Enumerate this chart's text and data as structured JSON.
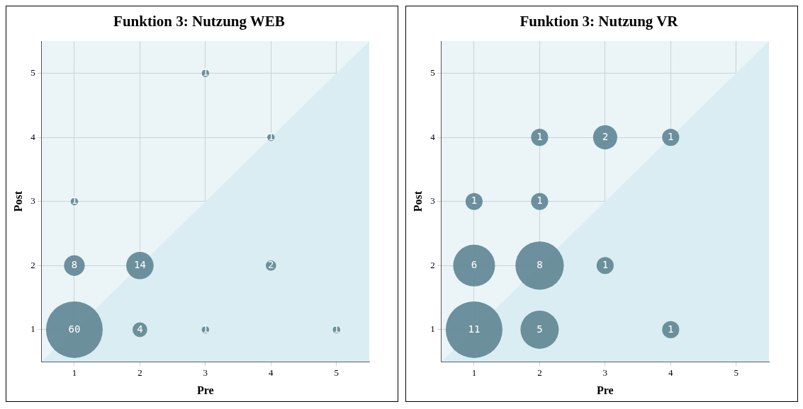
{
  "chart_data": [
    {
      "type": "bubble",
      "title": "Funktion 3: Nutzung WEB",
      "xlabel": "Pre",
      "ylabel": "Post",
      "xlim": [
        0.5,
        5.5
      ],
      "ylim": [
        0.5,
        5.5
      ],
      "xticks": [
        1,
        2,
        3,
        4,
        5
      ],
      "yticks": [
        1,
        2,
        3,
        4,
        5
      ],
      "grid": true,
      "series": [
        {
          "type": "area",
          "color": "#daedf3",
          "x": [
            0.5,
            5.5
          ],
          "values": [
            0.5,
            5.5
          ]
        },
        {
          "color": "#5e8592",
          "x": [
            1,
            2,
            3,
            5,
            1,
            2,
            4,
            1,
            4,
            3
          ],
          "values": [
            1,
            1,
            1,
            1,
            2,
            2,
            2,
            3,
            4,
            5
          ],
          "sizes": [
            1,
            0.067,
            0.017,
            0.017,
            0.133,
            0.233,
            0.033,
            0.017,
            0.017,
            0.017
          ]
        }
      ],
      "annotations": [
        {
          "text": "60",
          "x": 1,
          "y": 1
        },
        {
          "text": "4",
          "x": 2,
          "y": 1
        },
        {
          "text": "1",
          "x": 3,
          "y": 1
        },
        {
          "text": "1",
          "x": 5,
          "y": 1
        },
        {
          "text": "8",
          "x": 1,
          "y": 2
        },
        {
          "text": "14",
          "x": 2,
          "y": 2
        },
        {
          "text": "2",
          "x": 4,
          "y": 2
        },
        {
          "text": "1",
          "x": 1,
          "y": 3
        },
        {
          "text": "1",
          "x": 4,
          "y": 4
        },
        {
          "text": "1",
          "x": 3,
          "y": 5
        }
      ]
    },
    {
      "type": "bubble",
      "title": "Funktion 3: Nutzung VR",
      "xlabel": "Pre",
      "ylabel": "Post",
      "xlim": [
        0.5,
        5.5
      ],
      "ylim": [
        0.5,
        5.5
      ],
      "xticks": [
        1,
        2,
        3,
        4,
        5
      ],
      "yticks": [
        1,
        2,
        3,
        4,
        5
      ],
      "grid": true,
      "series": [
        {
          "type": "area",
          "color": "#daedf3",
          "x": [
            0.5,
            5.5
          ],
          "values": [
            0.5,
            5.5
          ]
        },
        {
          "color": "#5e8592",
          "x": [
            1,
            2,
            4,
            1,
            2,
            3,
            1,
            2,
            2,
            3,
            4
          ],
          "values": [
            1,
            1,
            1,
            2,
            2,
            2,
            3,
            3,
            4,
            4,
            4
          ],
          "sizes": [
            1,
            0.455,
            0.091,
            0.545,
            0.727,
            0.091,
            0.091,
            0.091,
            0.091,
            0.182,
            0.091
          ]
        }
      ],
      "annotations": [
        {
          "text": "11",
          "x": 1,
          "y": 1
        },
        {
          "text": "5",
          "x": 2,
          "y": 1
        },
        {
          "text": "1",
          "x": 4,
          "y": 1
        },
        {
          "text": "6",
          "x": 1,
          "y": 2
        },
        {
          "text": "8",
          "x": 2,
          "y": 2
        },
        {
          "text": "1",
          "x": 3,
          "y": 2
        },
        {
          "text": "1",
          "x": 1,
          "y": 3
        },
        {
          "text": "1",
          "x": 2,
          "y": 3
        },
        {
          "text": "1",
          "x": 2,
          "y": 4
        },
        {
          "text": "2",
          "x": 3,
          "y": 4
        },
        {
          "text": "1",
          "x": 4,
          "y": 4
        }
      ]
    }
  ]
}
